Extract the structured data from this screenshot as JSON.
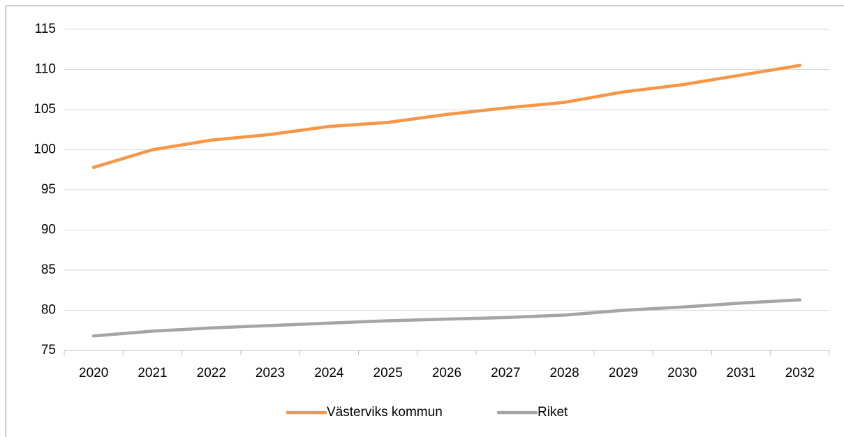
{
  "chart_data": {
    "type": "line",
    "categories": [
      "2020",
      "2021",
      "2022",
      "2023",
      "2024",
      "2025",
      "2026",
      "2027",
      "2028",
      "2029",
      "2030",
      "2031",
      "2032"
    ],
    "series": [
      {
        "name": "Västerviks kommun",
        "color": "#f79646",
        "values": [
          97.8,
          100.0,
          101.2,
          101.9,
          102.9,
          103.4,
          104.4,
          105.2,
          105.9,
          107.2,
          108.1,
          109.3,
          110.5
        ]
      },
      {
        "name": "Riket",
        "color": "#a5a5a5",
        "values": [
          76.8,
          77.4,
          77.8,
          78.1,
          78.4,
          78.7,
          78.9,
          79.1,
          79.4,
          80.0,
          80.4,
          80.9,
          81.3
        ]
      }
    ],
    "ylim": [
      75,
      115
    ],
    "yticks": [
      75,
      80,
      85,
      90,
      95,
      100,
      105,
      110,
      115
    ],
    "grid": true,
    "legend": "bottom"
  }
}
